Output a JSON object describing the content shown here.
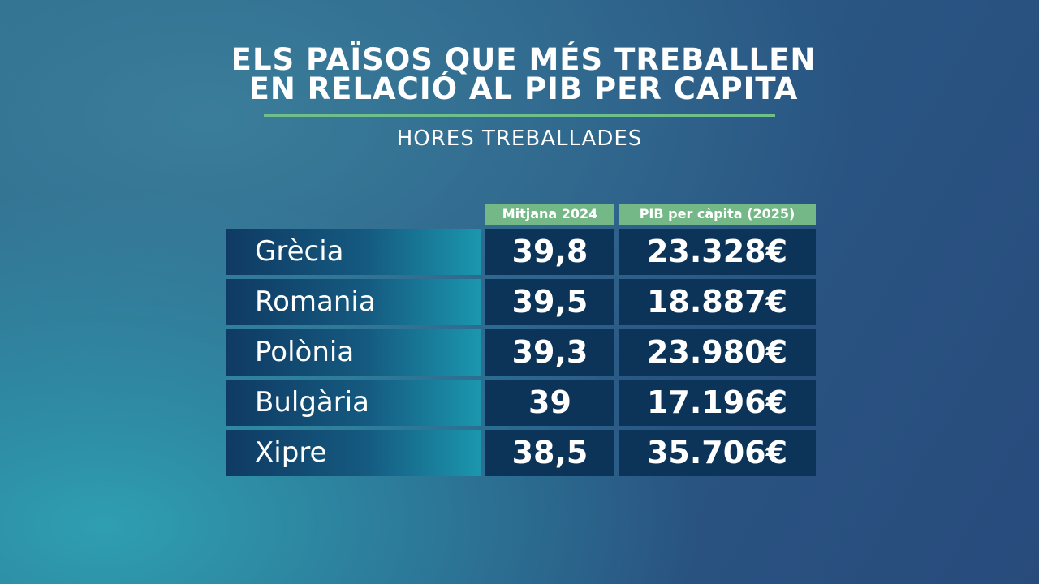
{
  "header": {
    "title_lines": [
      "ELS PAÏSOS QUE MÉS TREBALLEN",
      "EN RELACIÓ AL PIB PER CAPITA"
    ],
    "subtitle": "HORES TREBALLADES"
  },
  "table": {
    "columns": [
      "Mitjana 2024",
      "PIB per càpita (2025)"
    ],
    "rows": [
      [
        "Grècia",
        "39,8",
        "23.328€"
      ],
      [
        "Romania",
        "39,5",
        "18.887€"
      ],
      [
        "Polònia",
        "39,3",
        "23.980€"
      ],
      [
        "Bulgària",
        "39",
        "17.196€"
      ],
      [
        "Xipre",
        "38,5",
        "35.706€"
      ]
    ]
  }
}
